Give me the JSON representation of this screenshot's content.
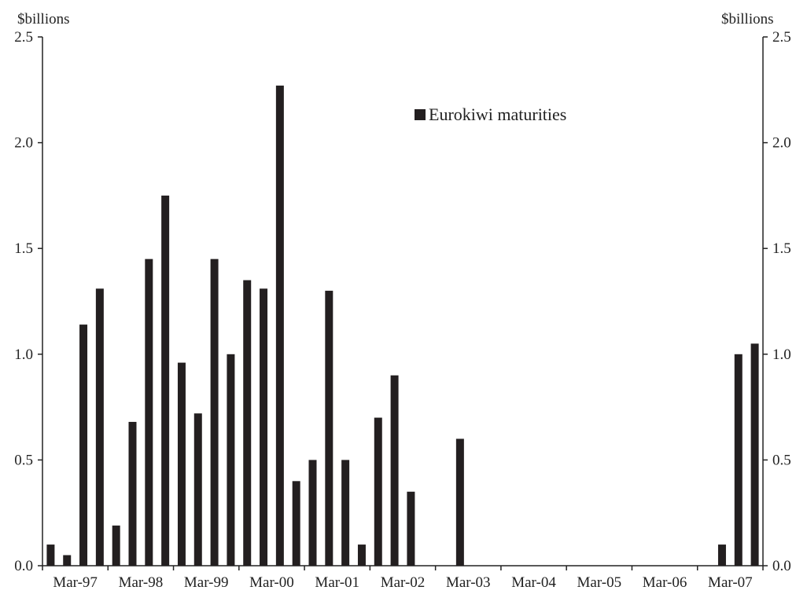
{
  "chart_data": {
    "type": "bar",
    "unit_left": "$billions",
    "unit_right": "$billions",
    "legend": {
      "label": "Eurokiwi maturities",
      "color": "#231f20",
      "placement": "top-center"
    },
    "ylim": [
      0,
      2.5
    ],
    "yticks": [
      "0.0",
      "0.5",
      "1.0",
      "1.5",
      "2.0",
      "2.5"
    ],
    "x_tick_labels": [
      "Mar-97",
      "Mar-98",
      "Mar-99",
      "Mar-00",
      "Mar-01",
      "Mar-02",
      "Mar-03",
      "Mar-04",
      "Mar-05",
      "Mar-06",
      "Mar-07"
    ],
    "frequency": "quarterly",
    "categories": [
      "Mar-97",
      "Jun-97",
      "Sep-97",
      "Dec-97",
      "Mar-98",
      "Jun-98",
      "Sep-98",
      "Dec-98",
      "Mar-99",
      "Jun-99",
      "Sep-99",
      "Dec-99",
      "Mar-00",
      "Jun-00",
      "Sep-00",
      "Dec-00",
      "Mar-01",
      "Jun-01",
      "Sep-01",
      "Dec-01",
      "Mar-02",
      "Jun-02",
      "Sep-02",
      "Dec-02",
      "Mar-03",
      "Jun-03",
      "Sep-03",
      "Dec-03",
      "Mar-04",
      "Jun-04",
      "Sep-04",
      "Dec-04",
      "Mar-05",
      "Jun-05",
      "Sep-05",
      "Dec-05",
      "Mar-06",
      "Jun-06",
      "Sep-06",
      "Dec-06",
      "Mar-07",
      "Jun-07",
      "Sep-07",
      "Dec-07"
    ],
    "series": [
      {
        "name": "Eurokiwi maturities",
        "values": [
          0.1,
          0.05,
          1.14,
          1.31,
          0.19,
          0.68,
          1.45,
          1.75,
          0.96,
          0.72,
          1.45,
          1.0,
          1.35,
          1.31,
          2.27,
          0.4,
          0.5,
          1.3,
          0.5,
          0.1,
          0.7,
          0.9,
          0.35,
          0,
          0,
          0.6,
          0,
          0,
          0,
          0,
          0,
          0,
          0,
          0,
          0,
          0,
          0,
          0,
          0,
          0,
          0,
          0.1,
          1.0,
          1.05
        ]
      }
    ]
  }
}
